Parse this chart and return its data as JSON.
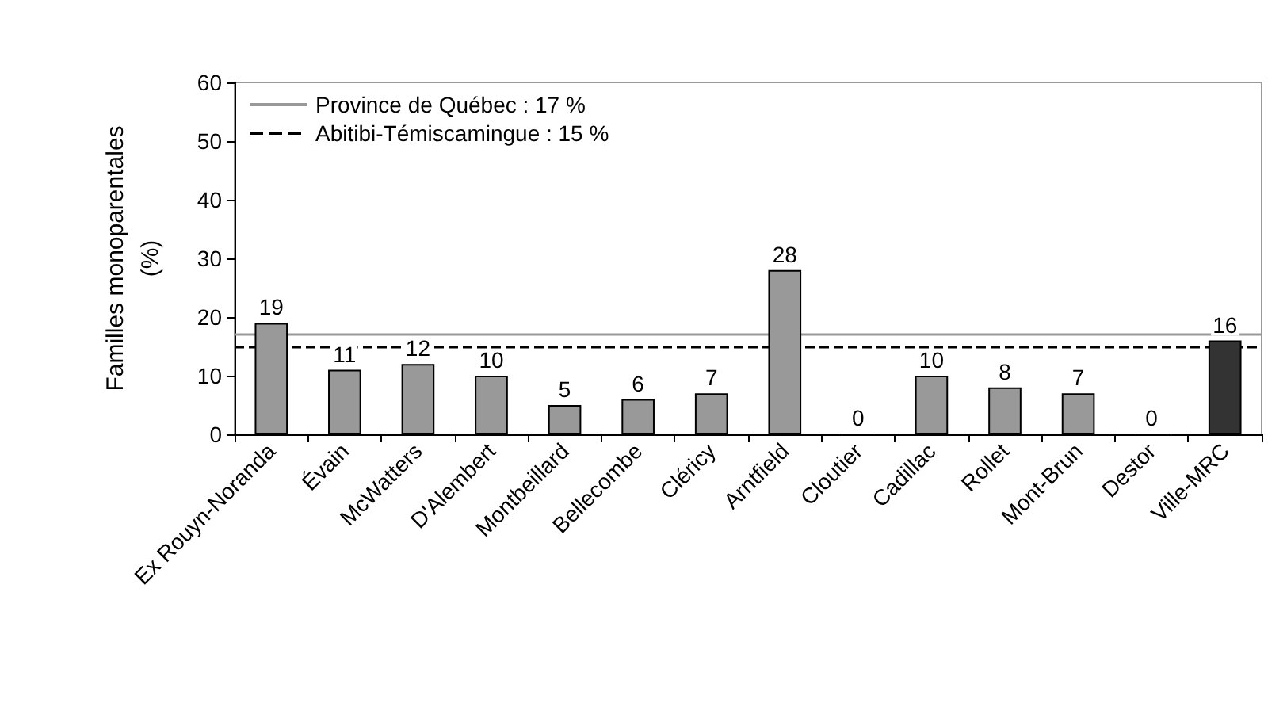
{
  "chart_data": {
    "type": "bar",
    "ylabel": "Familles monoparentales\n(%)",
    "categories": [
      "Ex Rouyn-Noranda",
      "Évain",
      "McWatters",
      "D'Alembert",
      "Montbeillard",
      "Bellecombe",
      "Cléricy",
      "Arntfield",
      "Cloutier",
      "Cadillac",
      "Rollet",
      "Mont-Brun",
      "Destor",
      "Ville-MRC"
    ],
    "values": [
      19,
      11,
      12,
      10,
      5,
      6,
      7,
      28,
      0,
      10,
      8,
      7,
      0,
      16
    ],
    "colors": [
      "#999999",
      "#999999",
      "#999999",
      "#999999",
      "#999999",
      "#999999",
      "#999999",
      "#999999",
      "#999999",
      "#999999",
      "#999999",
      "#999999",
      "#999999",
      "#333333"
    ],
    "data_labels": true,
    "ylim": [
      0,
      60
    ],
    "yticks": [
      0,
      10,
      20,
      30,
      40,
      50,
      60
    ],
    "grid": false,
    "legend": "top left",
    "ref_lines": [
      {
        "axis": "y",
        "value": 17,
        "label": "Province de Québec : 17 %",
        "color": "#999999",
        "line_style": "solid"
      },
      {
        "axis": "y",
        "value": 15,
        "label": "Abitibi-Témiscamingue : 15 %",
        "color": "#000000",
        "line_style": "dashed"
      }
    ]
  }
}
